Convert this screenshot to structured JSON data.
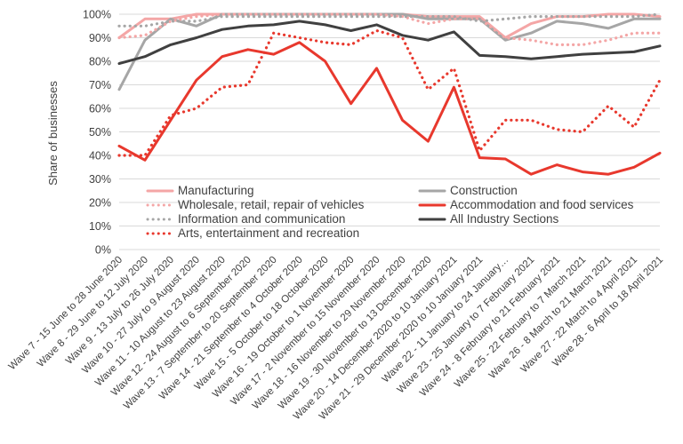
{
  "chart_data": {
    "type": "line",
    "title": "",
    "xlabel": "",
    "ylabel": "Share of businesses",
    "ylim": [
      0,
      100
    ],
    "y_ticks": [
      "0%",
      "10%",
      "20%",
      "30%",
      "40%",
      "50%",
      "60%",
      "70%",
      "80%",
      "90%",
      "100%"
    ],
    "y_tick_values": [
      0,
      10,
      20,
      30,
      40,
      50,
      60,
      70,
      80,
      90,
      100
    ],
    "grid": "horizontal",
    "legend_position": "inside-bottom",
    "categories": [
      "Wave 7 - 15 June to 28 June 2020",
      "Wave 8 - 29 June to 12 July 2020",
      "Wave 9 - 13 July to 26 July 2020",
      "Wave 10 - 27 July to 9 August 2020",
      "Wave 11 - 10 August to 23 August 2020",
      "Wave 12 - 24 August to 6 September 2020",
      "Wave 13 - 7 September to 20 September 2020",
      "Wave 14 - 21 September to 4 October 2020",
      "Wave 15 - 5 October to 18 October 2020",
      "Wave 16 - 19 October to 1 November 2020",
      "Wave 17 - 2 November to 15 November 2020",
      "Wave 18 - 16 November to 29 November 2020",
      "Wave 19 - 30 November to 13 December 2020",
      "Wave 20 - 14 December 2020 to 10 January 2021",
      "Wave 21 - 29 December 2020 to 10 January 2021",
      "Wave 22 - 11 January to 24 January…",
      "Wave 23 - 25 January to 7 February 2021",
      "Wave 24 - 8 February to 21 February 2021",
      "Wave 25 - 22 February to 7 March 2021",
      "Wave 26 - 8 March to 21 March 2021",
      "Wave 27 - 22 March to 4 April 2021",
      "Wave 28 - 6 April to 18 April 2021"
    ],
    "series": [
      {
        "name": "Manufacturing",
        "color": "#f4a6a6",
        "dash": "solid",
        "width": 3,
        "values": [
          90,
          98,
          98,
          100,
          100,
          100,
          100,
          100,
          100,
          100,
          100,
          100,
          99,
          99,
          99,
          90,
          96,
          99,
          99,
          100,
          100,
          99
        ]
      },
      {
        "name": "Construction",
        "color": "#a6a6a6",
        "dash": "solid",
        "width": 3,
        "values": [
          68,
          89,
          98,
          95,
          100,
          100,
          100,
          100,
          100,
          100,
          100,
          100,
          98,
          98,
          98,
          89,
          92,
          97,
          96,
          94,
          98,
          98
        ]
      },
      {
        "name": "Wholesale, retail, repair of vehicles",
        "color": "#f4a6a6",
        "dash": "dotted",
        "width": 3,
        "values": [
          90,
          91,
          97,
          99,
          100,
          100,
          100,
          100,
          100,
          100,
          100,
          99,
          96,
          98,
          98,
          90,
          89,
          87,
          87,
          89,
          92,
          92
        ]
      },
      {
        "name": "Accommodation and food services",
        "color": "#e8382d",
        "dash": "solid",
        "width": 3,
        "values": [
          44,
          38,
          55,
          72,
          82,
          85,
          83,
          88,
          80,
          62,
          77,
          55,
          46,
          69,
          39,
          38.5,
          32,
          36,
          33,
          32,
          35,
          41
        ]
      },
      {
        "name": "Information and communication",
        "color": "#a6a6a6",
        "dash": "dotted",
        "width": 3,
        "values": [
          95,
          95,
          97,
          97,
          99,
          99,
          99,
          99,
          99,
          99,
          99,
          99,
          99,
          99,
          97,
          98,
          99,
          99,
          99,
          99,
          99,
          100
        ]
      },
      {
        "name": "All Industry Sections",
        "color": "#404040",
        "dash": "solid",
        "width": 3,
        "values": [
          79,
          82,
          87,
          90,
          93.5,
          95,
          95.5,
          97,
          95.5,
          93,
          95.5,
          91,
          89,
          92.5,
          82.5,
          82,
          81,
          82,
          83,
          83.5,
          84,
          86.5
        ]
      },
      {
        "name": "Arts, entertainment and recreation",
        "color": "#e8382d",
        "dash": "dotted",
        "width": 3,
        "values": [
          40,
          40,
          57,
          60,
          69,
          70,
          92,
          90,
          88,
          87,
          93,
          90,
          68,
          77,
          42,
          55,
          55,
          51,
          50,
          61,
          52,
          72
        ]
      }
    ]
  }
}
